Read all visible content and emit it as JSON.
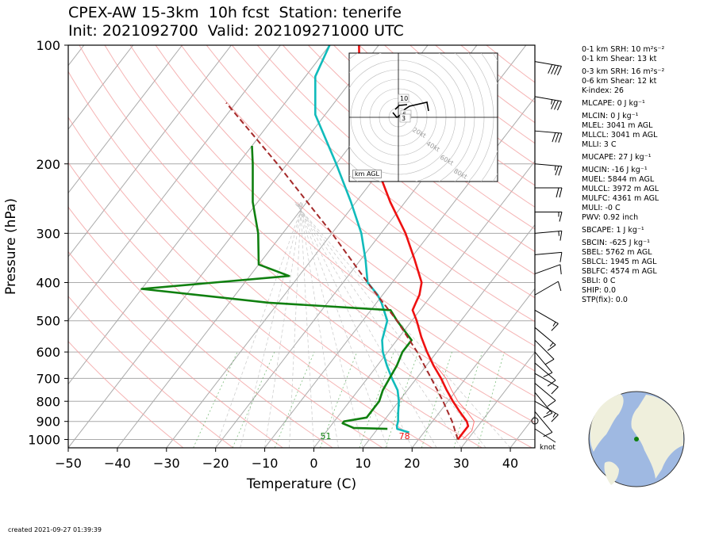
{
  "title": {
    "line1": "CPEX-AW 15-3km  10h fcst  Station: tenerife",
    "line2": "Init: 2021092700  Valid: 202109271000 UTC"
  },
  "created": "created 2021-09-27 01:39:39",
  "chart_data": {
    "type": "line",
    "xlabel": "Temperature (C)",
    "ylabel": "Pressure (hPa)",
    "xlim": [
      -50,
      45
    ],
    "ylim": [
      1050,
      100
    ],
    "y_scale": "log",
    "x_ticks": [
      -50,
      -40,
      -30,
      -20,
      -10,
      0,
      10,
      20,
      30,
      40
    ],
    "x_tick_labels": [
      "−50",
      "−40",
      "−30",
      "−20",
      "−10",
      "0",
      "10",
      "20",
      "30",
      "40"
    ],
    "y_ticks": [
      100,
      200,
      300,
      400,
      500,
      600,
      700,
      800,
      900,
      1000
    ],
    "skew": true,
    "series": [
      {
        "color": "#ee1111",
        "points": [
          [
            1000,
            28
          ],
          [
            960,
            28
          ],
          [
            925,
            28
          ],
          [
            900,
            27
          ],
          [
            850,
            24
          ],
          [
            800,
            21
          ],
          [
            750,
            18
          ],
          [
            700,
            15
          ],
          [
            650,
            11.5
          ],
          [
            600,
            8
          ],
          [
            550,
            4.5
          ],
          [
            500,
            1
          ],
          [
            470,
            -1.5
          ],
          [
            450,
            -2
          ],
          [
            430,
            -2.5
          ],
          [
            400,
            -4
          ],
          [
            350,
            -9
          ],
          [
            300,
            -15
          ],
          [
            250,
            -23
          ],
          [
            200,
            -32
          ],
          [
            150,
            -42
          ],
          [
            120,
            -49
          ],
          [
            100,
            -54
          ]
        ]
      },
      {
        "color": "#ff7777",
        "points": [
          [
            1000,
            29
          ],
          [
            950,
            29.5
          ],
          [
            900,
            28.5
          ],
          [
            850,
            25.5
          ],
          [
            800,
            22
          ],
          [
            750,
            19
          ],
          [
            700,
            16
          ],
          [
            650,
            12
          ]
        ]
      },
      {
        "color": "#11bbbb",
        "points": [
          [
            960,
            17
          ],
          [
            940,
            14
          ],
          [
            925,
            13.5
          ],
          [
            900,
            13
          ],
          [
            850,
            11.5
          ],
          [
            800,
            10
          ],
          [
            750,
            8
          ],
          [
            700,
            5
          ],
          [
            650,
            2
          ],
          [
            600,
            -1
          ],
          [
            560,
            -3
          ],
          [
            500,
            -5
          ],
          [
            450,
            -9
          ],
          [
            430,
            -11
          ],
          [
            400,
            -15
          ],
          [
            350,
            -19
          ],
          [
            300,
            -24
          ],
          [
            250,
            -31
          ],
          [
            200,
            -40
          ],
          [
            150,
            -52
          ],
          [
            120,
            -58
          ],
          [
            100,
            -60
          ]
        ]
      },
      {
        "color": "#108010",
        "points": [
          [
            940,
            12
          ],
          [
            935,
            5
          ],
          [
            910,
            2
          ],
          [
            900,
            2
          ],
          [
            880,
            6
          ],
          [
            840,
            6
          ],
          [
            800,
            6
          ],
          [
            750,
            5
          ],
          [
            700,
            4.5
          ],
          [
            650,
            4
          ],
          [
            600,
            3
          ],
          [
            560,
            3
          ],
          [
            500,
            -3
          ],
          [
            470,
            -6
          ],
          [
            450,
            -32
          ],
          [
            415,
            -60
          ],
          [
            385,
            -32
          ],
          [
            360,
            -40
          ],
          [
            300,
            -45
          ],
          [
            250,
            -51
          ],
          [
            200,
            -57
          ],
          [
            180,
            -60
          ]
        ]
      }
    ],
    "parcel": {
      "color": "#a52a2a",
      "points": [
        [
          1000,
          28
        ],
        [
          900,
          24
        ],
        [
          800,
          19
        ],
        [
          700,
          13
        ],
        [
          600,
          6
        ],
        [
          500,
          -3
        ],
        [
          400,
          -15
        ],
        [
          300,
          -30
        ],
        [
          200,
          -52
        ],
        [
          140,
          -72
        ]
      ]
    },
    "surface_labels": [
      {
        "text": "51",
        "color": "#108010",
        "temp": 11
      },
      {
        "text": "78",
        "color": "#ee1111",
        "temp": 27
      }
    ],
    "wind_profile": [
      {
        "p": 110,
        "dir": 280,
        "spd": 40
      },
      {
        "p": 135,
        "dir": 280,
        "spd": 35
      },
      {
        "p": 165,
        "dir": 275,
        "spd": 30
      },
      {
        "p": 200,
        "dir": 275,
        "spd": 25
      },
      {
        "p": 230,
        "dir": 270,
        "spd": 20
      },
      {
        "p": 265,
        "dir": 270,
        "spd": 15
      },
      {
        "p": 300,
        "dir": 265,
        "spd": 15
      },
      {
        "p": 340,
        "dir": 265,
        "spd": 10
      },
      {
        "p": 380,
        "dir": 250,
        "spd": 10
      },
      {
        "p": 430,
        "dir": 240,
        "spd": 10
      },
      {
        "p": 470,
        "dir": 300,
        "spd": 15
      },
      {
        "p": 520,
        "dir": 310,
        "spd": 15
      },
      {
        "p": 560,
        "dir": 315,
        "spd": 10
      },
      {
        "p": 600,
        "dir": 320,
        "spd": 10
      },
      {
        "p": 640,
        "dir": 310,
        "spd": 10
      },
      {
        "p": 680,
        "dir": 300,
        "spd": 10
      },
      {
        "p": 720,
        "dir": 310,
        "spd": 10
      },
      {
        "p": 760,
        "dir": 320,
        "spd": 15
      },
      {
        "p": 800,
        "dir": 300,
        "spd": 15
      },
      {
        "p": 850,
        "dir": 320,
        "spd": 10
      }
    ],
    "hodograph": {
      "label": "km AGL",
      "ring_labels": [
        "20kt",
        "40kt",
        "60kt",
        "80kt"
      ],
      "height_labels": [
        "10",
        "6",
        "3"
      ]
    },
    "knot_label": "knot"
  },
  "params": [
    "0-1 km SRH: 10 m²s⁻²",
    "0-1 km Shear: 13 kt",
    "0-3 km SRH: 16 m²s⁻²",
    "0-6 km Shear: 12 kt",
    "K-index: 26",
    "MLCAPE: 0 J kg⁻¹",
    "MLCIN: 0 J kg⁻¹",
    "MLEL: 3041 m AGL",
    "MLLCL: 3041 m AGL",
    "MLLI: 3 C",
    "MUCAPE: 27 J kg⁻¹",
    "MUCIN: -16 J kg⁻¹",
    "MUEL: 5844 m AGL",
    "MULCL: 3972 m AGL",
    "MULFC: 4361 m AGL",
    "MULI: -0 C",
    "PWV: 0.92 inch",
    "SBCAPE: 1 J kg⁻¹",
    "SBCIN: -625 J kg⁻¹",
    "SBEL: 5762 m AGL",
    "SBLCL: 1945 m AGL",
    "SBLFC: 4574 m AGL",
    "SBLI: 0 C",
    "SHIP: 0.0",
    "STP(fix): 0.0"
  ]
}
